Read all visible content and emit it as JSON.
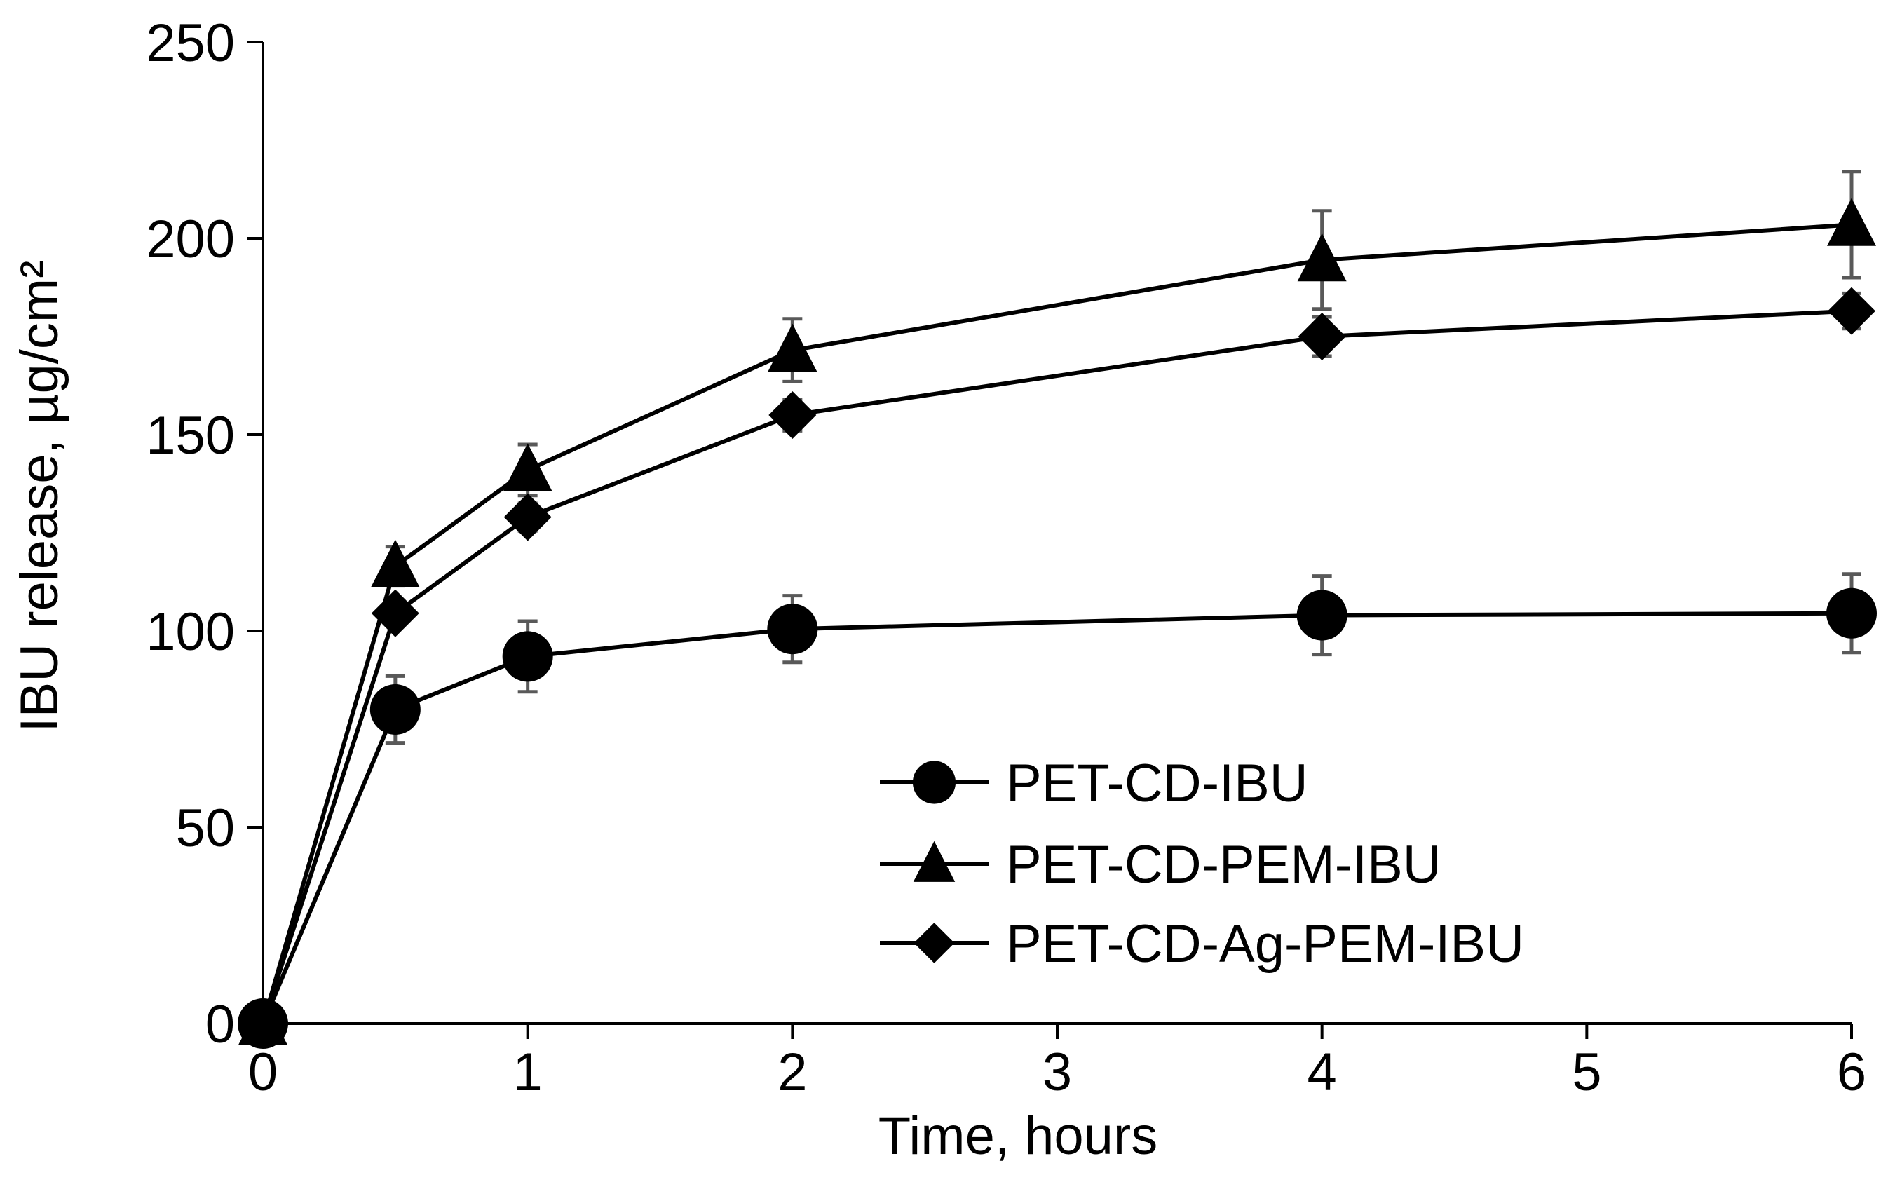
{
  "chart_data": {
    "type": "line",
    "title": "",
    "xlabel": "Time, hours",
    "ylabel": "IBU  release, µg/cm²",
    "xlim": [
      0,
      6
    ],
    "ylim": [
      0,
      250
    ],
    "xticks": [
      "0",
      "1",
      "2",
      "3",
      "4",
      "5",
      "6"
    ],
    "yticks": [
      "0",
      "50",
      "100",
      "150",
      "200",
      "250"
    ],
    "grid": false,
    "legend_position": "bottom-right",
    "series": [
      {
        "name": "PET-CD-IBU",
        "marker": "circle",
        "x": [
          0,
          0.5,
          1,
          2,
          4,
          6
        ],
        "values": [
          0,
          80,
          93.5,
          100.5,
          104,
          104.5
        ],
        "errors": [
          0,
          8.5,
          9,
          8.5,
          10,
          10
        ]
      },
      {
        "name": "PET-CD-PEM-IBU",
        "marker": "triangle",
        "x": [
          0,
          0.5,
          1,
          2,
          4,
          6
        ],
        "values": [
          0,
          116.5,
          141,
          171.5,
          194.5,
          203.5
        ],
        "errors": [
          0,
          5,
          6.5,
          8,
          12.5,
          13.5
        ]
      },
      {
        "name": "PET-CD-Ag-PEM-IBU",
        "marker": "diamond",
        "x": [
          0,
          0.5,
          1,
          2,
          4,
          6
        ],
        "values": [
          0,
          104.5,
          129,
          155,
          175,
          181.5
        ],
        "errors": [
          0,
          3,
          3.5,
          4,
          5,
          4.5
        ]
      }
    ]
  }
}
